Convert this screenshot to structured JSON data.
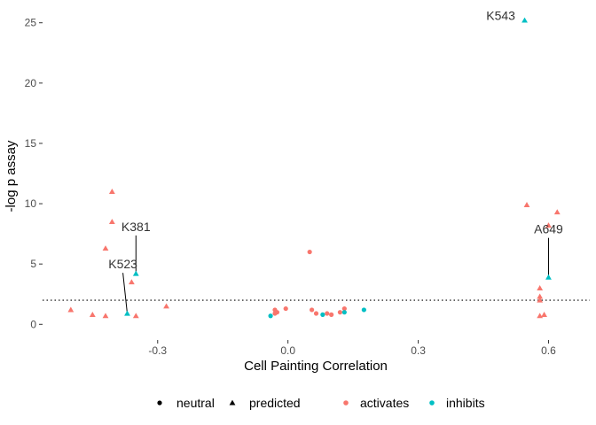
{
  "chart_data": {
    "type": "scatter",
    "title": "",
    "xlabel": "Cell Painting Correlation",
    "ylabel": "-log p assay",
    "xlim": [
      -0.565,
      0.695
    ],
    "ylim": [
      -1.3,
      26.3
    ],
    "x_ticks": [
      -0.3,
      0.0,
      0.3,
      0.6
    ],
    "x_tick_labels": [
      "-0.3",
      "0.0",
      "0.3",
      "0.6"
    ],
    "y_ticks": [
      0,
      5,
      10,
      15,
      20,
      25
    ],
    "y_tick_labels": [
      "0",
      "5",
      "10",
      "15",
      "20",
      "25"
    ],
    "threshold_y": 2.0,
    "grid": false,
    "colors": {
      "activates": "#f8766d",
      "inhibits": "#00bfc4"
    },
    "legend": {
      "placement": "bottom",
      "shape_entries": [
        {
          "key": "neutral",
          "label": "neutral",
          "shape": "circle"
        },
        {
          "key": "predicted",
          "label": "predicted",
          "shape": "triangle"
        }
      ],
      "color_entries": [
        {
          "key": "activates",
          "label": "activates"
        },
        {
          "key": "inhibits",
          "label": "inhibits"
        }
      ]
    },
    "points": [
      {
        "x": 0.545,
        "y": 25.2,
        "shape": "predicted",
        "effect": "inhibits"
      },
      {
        "x": -0.405,
        "y": 11.0,
        "shape": "predicted",
        "effect": "activates"
      },
      {
        "x": 0.55,
        "y": 9.9,
        "shape": "predicted",
        "effect": "activates"
      },
      {
        "x": 0.62,
        "y": 9.3,
        "shape": "predicted",
        "effect": "activates"
      },
      {
        "x": -0.405,
        "y": 8.5,
        "shape": "predicted",
        "effect": "activates"
      },
      {
        "x": 0.6,
        "y": 8.2,
        "shape": "predicted",
        "effect": "activates"
      },
      {
        "x": -0.42,
        "y": 6.3,
        "shape": "predicted",
        "effect": "activates"
      },
      {
        "x": -0.35,
        "y": 4.2,
        "shape": "predicted",
        "effect": "inhibits"
      },
      {
        "x": 0.6,
        "y": 3.9,
        "shape": "predicted",
        "effect": "inhibits"
      },
      {
        "x": -0.36,
        "y": 3.5,
        "shape": "predicted",
        "effect": "activates"
      },
      {
        "x": 0.58,
        "y": 3.0,
        "shape": "predicted",
        "effect": "activates"
      },
      {
        "x": 0.58,
        "y": 2.3,
        "shape": "predicted",
        "effect": "activates"
      },
      {
        "x": 0.58,
        "y": 2.0,
        "shape": "predicted",
        "effect": "activates"
      },
      {
        "x": -0.28,
        "y": 1.5,
        "shape": "predicted",
        "effect": "activates"
      },
      {
        "x": -0.5,
        "y": 1.2,
        "shape": "predicted",
        "effect": "activates"
      },
      {
        "x": -0.37,
        "y": 0.9,
        "shape": "predicted",
        "effect": "inhibits"
      },
      {
        "x": -0.45,
        "y": 0.8,
        "shape": "predicted",
        "effect": "activates"
      },
      {
        "x": -0.42,
        "y": 0.7,
        "shape": "predicted",
        "effect": "activates"
      },
      {
        "x": -0.35,
        "y": 0.7,
        "shape": "predicted",
        "effect": "activates"
      },
      {
        "x": 0.59,
        "y": 0.8,
        "shape": "predicted",
        "effect": "activates"
      },
      {
        "x": 0.58,
        "y": 0.7,
        "shape": "predicted",
        "effect": "activates"
      },
      {
        "x": 0.05,
        "y": 6.0,
        "shape": "neutral",
        "effect": "activates"
      },
      {
        "x": -0.005,
        "y": 1.3,
        "shape": "neutral",
        "effect": "activates"
      },
      {
        "x": -0.03,
        "y": 1.2,
        "shape": "neutral",
        "effect": "activates"
      },
      {
        "x": -0.025,
        "y": 1.0,
        "shape": "neutral",
        "effect": "activates"
      },
      {
        "x": 0.055,
        "y": 1.2,
        "shape": "neutral",
        "effect": "activates"
      },
      {
        "x": 0.065,
        "y": 0.9,
        "shape": "neutral",
        "effect": "activates"
      },
      {
        "x": 0.09,
        "y": 0.9,
        "shape": "neutral",
        "effect": "activates"
      },
      {
        "x": 0.1,
        "y": 0.8,
        "shape": "neutral",
        "effect": "activates"
      },
      {
        "x": 0.12,
        "y": 1.0,
        "shape": "neutral",
        "effect": "activates"
      },
      {
        "x": 0.13,
        "y": 1.3,
        "shape": "neutral",
        "effect": "activates"
      },
      {
        "x": -0.03,
        "y": 0.9,
        "shape": "neutral",
        "effect": "activates"
      },
      {
        "x": -0.04,
        "y": 0.7,
        "shape": "neutral",
        "effect": "inhibits"
      },
      {
        "x": 0.08,
        "y": 0.8,
        "shape": "neutral",
        "effect": "inhibits"
      },
      {
        "x": 0.13,
        "y": 1.0,
        "shape": "neutral",
        "effect": "inhibits"
      },
      {
        "x": 0.175,
        "y": 1.2,
        "shape": "neutral",
        "effect": "inhibits"
      }
    ],
    "annotations": [
      {
        "label": "K543",
        "point_x": 0.545,
        "point_y": 25.2,
        "label_x": 0.49,
        "label_y": 25.6,
        "line": false
      },
      {
        "label": "K381",
        "point_x": -0.35,
        "point_y": 4.2,
        "label_x": -0.35,
        "label_y": 8.1,
        "line": true
      },
      {
        "label": "K523",
        "point_x": -0.37,
        "point_y": 0.9,
        "label_x": -0.38,
        "label_y": 5.0,
        "line": true
      },
      {
        "label": "A649",
        "point_x": 0.6,
        "point_y": 3.9,
        "label_x": 0.6,
        "label_y": 7.9,
        "line": true
      }
    ]
  }
}
